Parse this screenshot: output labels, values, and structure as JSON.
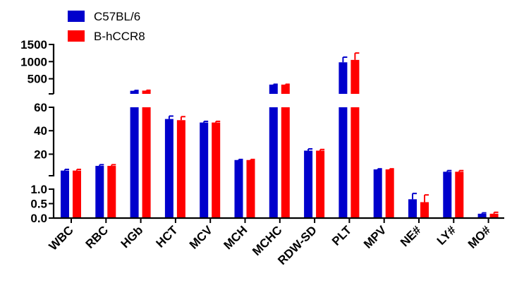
{
  "chart_data": {
    "type": "bar",
    "title": "",
    "xlabel": "",
    "ylabel": "",
    "categories": [
      "WBC",
      "RBC",
      "HGb",
      "HCT",
      "MCV",
      "MCH",
      "MCHC",
      "RDW-SD",
      "PLT",
      "MPV",
      "NE#",
      "LY#",
      "MO#"
    ],
    "series": [
      {
        "name": "C57BL/6",
        "color": "#0000cc",
        "values": [
          6,
          10,
          150,
          50,
          47,
          15,
          330,
          23,
          980,
          7,
          0.65,
          5,
          0.15
        ],
        "errors": [
          1,
          1,
          10,
          2.5,
          1,
          0.5,
          10,
          1.5,
          150,
          0.5,
          0.2,
          1,
          0.03
        ]
      },
      {
        "name": "B-hCCR8",
        "color": "#ff0000",
        "values": [
          6,
          10,
          155,
          49,
          47,
          15,
          330,
          23,
          1050,
          7,
          0.55,
          5,
          0.15
        ],
        "errors": [
          1,
          1,
          10,
          3,
          1,
          0.5,
          10,
          1,
          200,
          0.5,
          0.25,
          1,
          0.05
        ]
      }
    ],
    "y_segments": [
      {
        "range": [
          0,
          1.0
        ],
        "ticks": [
          "0.0",
          "0.5",
          "1.0"
        ]
      },
      {
        "range": [
          1.0,
          60
        ],
        "ticks": [
          "20",
          "40",
          "60"
        ]
      },
      {
        "range": [
          60,
          1500
        ],
        "ticks": [
          "500",
          "1000",
          "1500"
        ]
      }
    ],
    "legend_position": "top-left"
  }
}
